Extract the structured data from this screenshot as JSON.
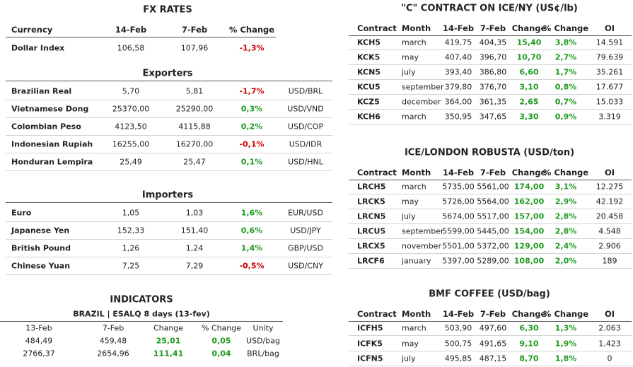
{
  "fx": {
    "title": "FX RATES",
    "header": [
      "Currency",
      "14-Feb",
      "7-Feb",
      "% Change"
    ],
    "dollar_index": [
      "Dollar Index",
      "106,58",
      "107,96",
      "-1,3%"
    ],
    "exporters": {
      "title": "Exporters",
      "rows": [
        [
          "Brazilian Real",
          "5,70",
          "5,81",
          "-1,7%",
          "USD/BRL"
        ],
        [
          "Vietnamese Dong",
          "25370,00",
          "25290,00",
          "0,3%",
          "USD/VND"
        ],
        [
          "Colombian Peso",
          "4123,50",
          "4115,88",
          "0,2%",
          "USD/COP"
        ],
        [
          "Indonesian Rupiah",
          "16255,00",
          "16270,00",
          "-0,1%",
          "USD/IDR"
        ],
        [
          "Honduran Lempira",
          "25,49",
          "25,47",
          "0,1%",
          "USD/HNL"
        ]
      ]
    },
    "importers": {
      "title": "Importers",
      "rows": [
        [
          "Euro",
          "1,05",
          "1,03",
          "1,6%",
          "EUR/USD"
        ],
        [
          "Japanese Yen",
          "152,33",
          "151,40",
          "0,6%",
          "USD/JPY"
        ],
        [
          "British Pound",
          "1,26",
          "1,24",
          "1,4%",
          "GBP/USD"
        ],
        [
          "Chinese Yuan",
          "7,25",
          "7,29",
          "-0,5%",
          "USD/CNY"
        ]
      ]
    }
  },
  "indicators": {
    "title": "INDICATORS",
    "subtitle": "BRAZIL | ESALQ 8 days (13-fev)",
    "header": [
      "13-Feb",
      "7-Feb",
      "Change",
      "% Change",
      "Unity"
    ],
    "rows": [
      [
        "484,49",
        "459,48",
        "25,01",
        "0,05",
        "USD/bag"
      ],
      [
        "2766,37",
        "2654,96",
        "111,41",
        "0,04",
        "BRL/bag"
      ]
    ]
  },
  "tables": [
    {
      "title": "\"C\" CONTRACT ON ICE/NY (US¢/lb)",
      "header": [
        "Contract",
        "Month",
        "14-Feb",
        "7-Feb",
        "Change",
        "% Change",
        "OI"
      ],
      "rows": [
        [
          "KCH5",
          "march",
          "419,75",
          "404,35",
          "15,40",
          "3,8%",
          "14.591"
        ],
        [
          "KCK5",
          "may",
          "407,40",
          "396,70",
          "10,70",
          "2,7%",
          "79.639"
        ],
        [
          "KCN5",
          "july",
          "393,40",
          "386,80",
          "6,60",
          "1,7%",
          "35.261"
        ],
        [
          "KCU5",
          "september",
          "379,80",
          "376,70",
          "3,10",
          "0,8%",
          "17.677"
        ],
        [
          "KCZ5",
          "december",
          "364,00",
          "361,35",
          "2,65",
          "0,7%",
          "15.033"
        ],
        [
          "KCH6",
          "march",
          "350,95",
          "347,65",
          "3,30",
          "0,9%",
          "3.319"
        ]
      ]
    },
    {
      "title": "ICE/LONDON ROBUSTA (USD/ton)",
      "header": [
        "Contract",
        "Month",
        "14-Feb",
        "7-Feb",
        "Change",
        "% Change",
        "OI"
      ],
      "rows": [
        [
          "LRCH5",
          "march",
          "5735,00",
          "5561,00",
          "174,00",
          "3,1%",
          "12.275"
        ],
        [
          "LRCK5",
          "may",
          "5726,00",
          "5564,00",
          "162,00",
          "2,9%",
          "42.192"
        ],
        [
          "LRCN5",
          "july",
          "5674,00",
          "5517,00",
          "157,00",
          "2,8%",
          "20.458"
        ],
        [
          "LRCU5",
          "september",
          "5599,00",
          "5445,00",
          "154,00",
          "2,8%",
          "4.548"
        ],
        [
          "LRCX5",
          "november",
          "5501,00",
          "5372,00",
          "129,00",
          "2,4%",
          "2.906"
        ],
        [
          "LRCF6",
          "january",
          "5397,00",
          "5289,00",
          "108,00",
          "2,0%",
          "189"
        ]
      ]
    },
    {
      "title": "BMF COFFEE (USD/bag)",
      "header": [
        "Contract",
        "Month",
        "14-Feb",
        "7-Feb",
        "Change",
        "% Change",
        "OI"
      ],
      "rows": [
        [
          "ICFH5",
          "march",
          "503,90",
          "497,60",
          "6,30",
          "1,3%",
          "2.063"
        ],
        [
          "ICFK5",
          "may",
          "500,75",
          "491,65",
          "9,10",
          "1,9%",
          "1.423"
        ],
        [
          "ICFN5",
          "july",
          "495,85",
          "487,15",
          "8,70",
          "1,8%",
          "0"
        ]
      ]
    }
  ]
}
